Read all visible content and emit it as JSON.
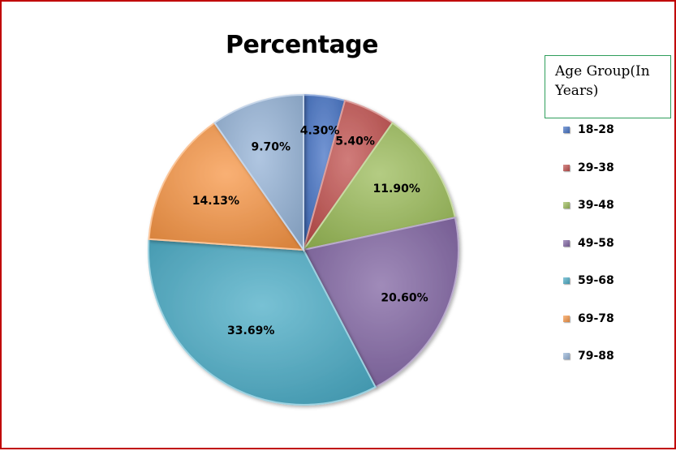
{
  "chart_data": {
    "type": "pie",
    "title": "Percentage",
    "legend_title": "Age Group(In Years)",
    "legend_position": "right",
    "categories": [
      "18-28",
      "29-38",
      "39-48",
      "49-58",
      "59-68",
      "69-78",
      "79-88"
    ],
    "values": [
      4.3,
      5.4,
      11.9,
      20.6,
      33.69,
      14.13,
      9.7
    ],
    "value_labels": [
      "4.30%",
      "5.40%",
      "11.90%",
      "20.60%",
      "33.69%",
      "14.13%",
      "9.70%"
    ],
    "colors": [
      "#4472c4",
      "#c0504d",
      "#9bbb59",
      "#8064a2",
      "#4bacc6",
      "#f79646",
      "#95b3d7"
    ]
  }
}
